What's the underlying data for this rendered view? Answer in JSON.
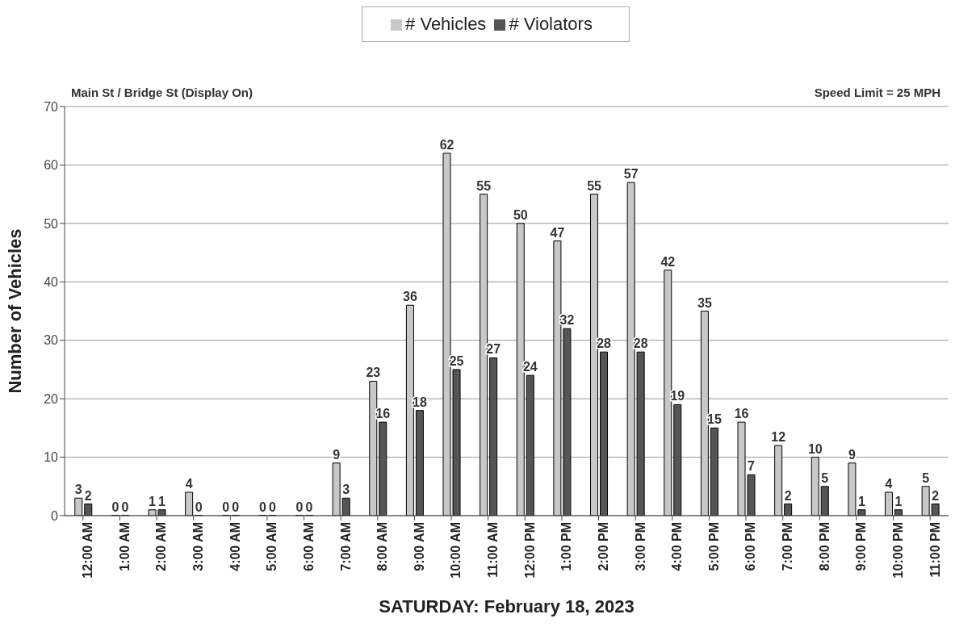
{
  "chart_data": {
    "type": "bar",
    "subtitle": "Main St / Bridge St (Display On)",
    "annotations": [
      "Speed Limit = 25 MPH"
    ],
    "xlabel": "SATURDAY: February 18, 2023",
    "ylabel": "Number of Vehicles",
    "categories": [
      "12:00 AM",
      "1:00 AM",
      "2:00 AM",
      "3:00 AM",
      "4:00 AM",
      "5:00 AM",
      "6:00 AM",
      "7:00 AM",
      "8:00 AM",
      "9:00 AM",
      "10:00 AM",
      "11:00 AM",
      "12:00 PM",
      "1:00 PM",
      "2:00 PM",
      "3:00 PM",
      "4:00 PM",
      "5:00 PM",
      "6:00 PM",
      "7:00 PM",
      "8:00 PM",
      "9:00 PM",
      "10:00 PM",
      "11:00 PM"
    ],
    "series": [
      {
        "name": "# Vehicles",
        "color": "#c8c8c8",
        "values": [
          3,
          0,
          1,
          4,
          0,
          0,
          0,
          9,
          23,
          36,
          62,
          55,
          50,
          47,
          55,
          57,
          42,
          35,
          16,
          12,
          10,
          9,
          4,
          5
        ]
      },
      {
        "name": "# Violators",
        "color": "#555555",
        "values": [
          2,
          0,
          1,
          0,
          0,
          0,
          0,
          3,
          16,
          18,
          25,
          27,
          24,
          32,
          28,
          28,
          19,
          15,
          7,
          2,
          5,
          1,
          1,
          2
        ]
      }
    ],
    "ylim": [
      0,
      70
    ],
    "yticks": [
      0,
      10,
      20,
      30,
      40,
      50,
      60,
      70
    ],
    "grid": "y",
    "legend": "top",
    "data_labels": true
  }
}
